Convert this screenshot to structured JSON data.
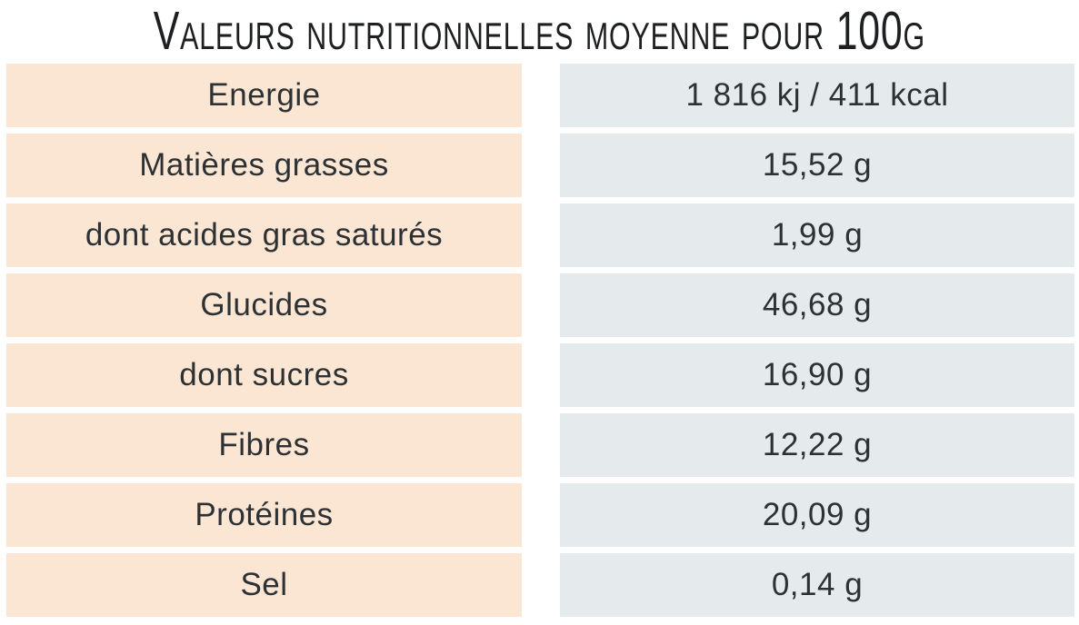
{
  "title": "Valeurs nutritionnelles moyenne pour 100g",
  "colors": {
    "background": "#ffffff",
    "label_cell_bg": "#fbe6d4",
    "value_cell_bg": "#e5eaec",
    "text": "#2d3134",
    "title_text": "#1d1f21"
  },
  "table": {
    "rows": [
      {
        "label": "Energie",
        "value": "1 816 kj / 411 kcal"
      },
      {
        "label": "Matières grasses",
        "value": "15,52 g"
      },
      {
        "label": "dont acides gras saturés",
        "value": "1,99 g"
      },
      {
        "label": "Glucides",
        "value": "46,68 g"
      },
      {
        "label": "dont sucres",
        "value": "16,90 g"
      },
      {
        "label": "Fibres",
        "value": "12,22 g"
      },
      {
        "label": "Protéines",
        "value": "20,09 g"
      },
      {
        "label": "Sel",
        "value": "0,14 g"
      }
    ]
  }
}
